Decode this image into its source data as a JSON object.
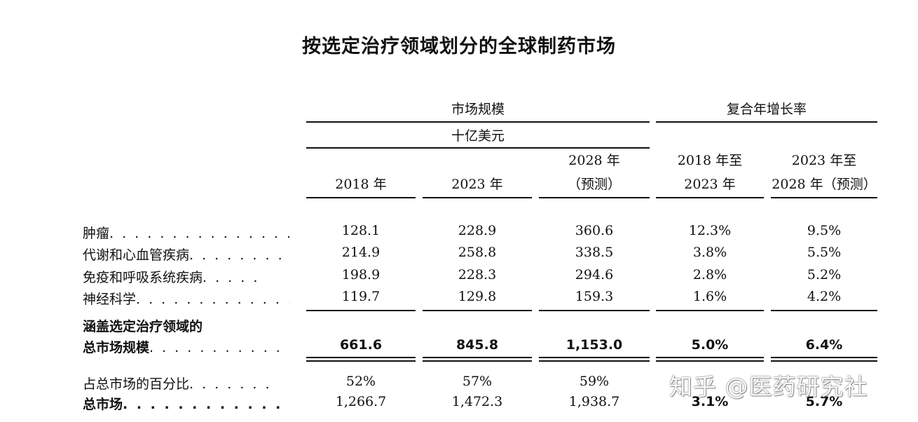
{
  "title": "按选定治疗领域划分的全球制药市场",
  "header": {
    "market_size": "市场规模",
    "unit": "十亿美元",
    "cagr": "复合年增长率",
    "years": [
      {
        "line1": "",
        "line2": "2018 年"
      },
      {
        "line1": "",
        "line2": "2023 年"
      },
      {
        "line1": "2028 年",
        "line2": "（预测）"
      },
      {
        "line1": "2018 年至",
        "line2": "2023 年"
      },
      {
        "line1": "2023 年至",
        "line2": "2028 年（预测）"
      }
    ]
  },
  "rows": [
    {
      "label": "肿瘤",
      "dots": ". . . . . . . . . . . . . . . . . . . .",
      "values": [
        "128.1",
        "228.9",
        "360.6",
        "12.3%",
        "9.5%"
      ]
    },
    {
      "label": "代谢和心血管疾病",
      "dots": ". . . . . . . . .",
      "values": [
        "214.9",
        "258.8",
        "338.5",
        "3.8%",
        "5.5%"
      ]
    },
    {
      "label": "免疫和呼吸系统疾病",
      "dots": ". . . . .",
      "values": [
        "198.9",
        "228.3",
        "294.6",
        "2.8%",
        "5.2%"
      ]
    },
    {
      "label": "神经科学",
      "dots": ". . . . . . . . . . . . . . .",
      "values": [
        "119.7",
        "129.8",
        "159.3",
        "1.6%",
        "4.2%"
      ]
    }
  ],
  "subtotal": {
    "label_line1": "涵盖选定治疗领域的",
    "label_line2": "总市场规模",
    "dots": ". . . . . . . . . . . . . .",
    "values": [
      "661.6",
      "845.8",
      "1,153.0",
      "5.0%",
      "6.4%"
    ]
  },
  "share": {
    "label": "占总市场的百分比",
    "dots": ". . . . . . .",
    "values": [
      "52%",
      "57%",
      "59%"
    ]
  },
  "total": {
    "label": "总市场",
    "dots": ". . . . . . . . . . . . . . . . . . . .",
    "values": [
      "1,266.7",
      "1,472.3",
      "1,938.7",
      "3.1%",
      "5.7%"
    ]
  },
  "watermark": "知乎 @医药研究社"
}
